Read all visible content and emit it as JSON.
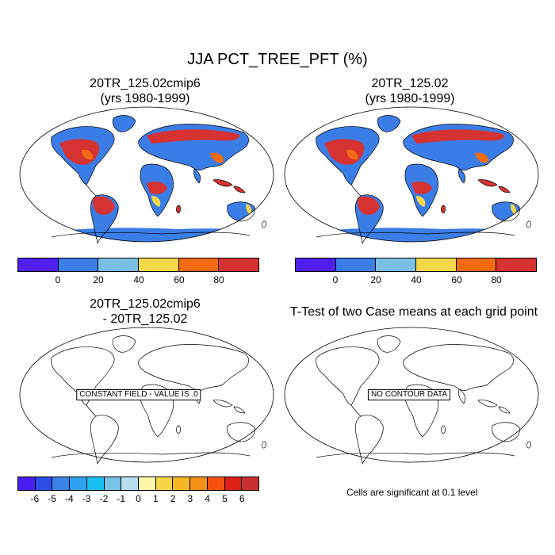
{
  "figure": {
    "title": "JJA PCT_TREE_PFT (%)"
  },
  "panels": [
    {
      "line1": "20TR_125.02cmip6",
      "line2": "(yrs 1980-1999)"
    },
    {
      "line1": "20TR_125.02",
      "line2": "(yrs 1980-1999)"
    },
    {
      "line1": "20TR_125.02cmip6",
      "line2": "- 20TR_125.02",
      "message": "CONSTANT FIELD - VALUE IS .0"
    },
    {
      "line1": "T-Test of two Case means at each grid point",
      "line2": "",
      "message": "NO CONTOUR DATA"
    }
  ],
  "colorbar_top": {
    "colors": [
      "#4f1ff0",
      "#3a7de6",
      "#79bfe6",
      "#f5d84a",
      "#f26a12",
      "#d63232"
    ],
    "ticks": [
      "0",
      "20",
      "40",
      "60",
      "80"
    ]
  },
  "colorbar_bottom": {
    "colors": [
      "#4a1df2",
      "#2b4fe8",
      "#3b82e8",
      "#2ea2f0",
      "#19c0f2",
      "#78c2e8",
      "#b8dcf2",
      "#fff7a8",
      "#f5d64a",
      "#f5b624",
      "#f59016",
      "#f2520e",
      "#de1f16",
      "#c83030"
    ],
    "ticks": [
      "-6",
      "-5",
      "-4",
      "-3",
      "-2",
      "-1",
      "0",
      "1",
      "2",
      "3",
      "4",
      "5",
      "6"
    ]
  },
  "significance_note": "Cells are significant at 0.1 level",
  "map_colors": {
    "ocean": "#ffffff",
    "low": "#3a7de6",
    "mid": "#79bfe6",
    "yellow": "#f5d84a",
    "orange": "#f26a12",
    "high": "#d63232"
  }
}
